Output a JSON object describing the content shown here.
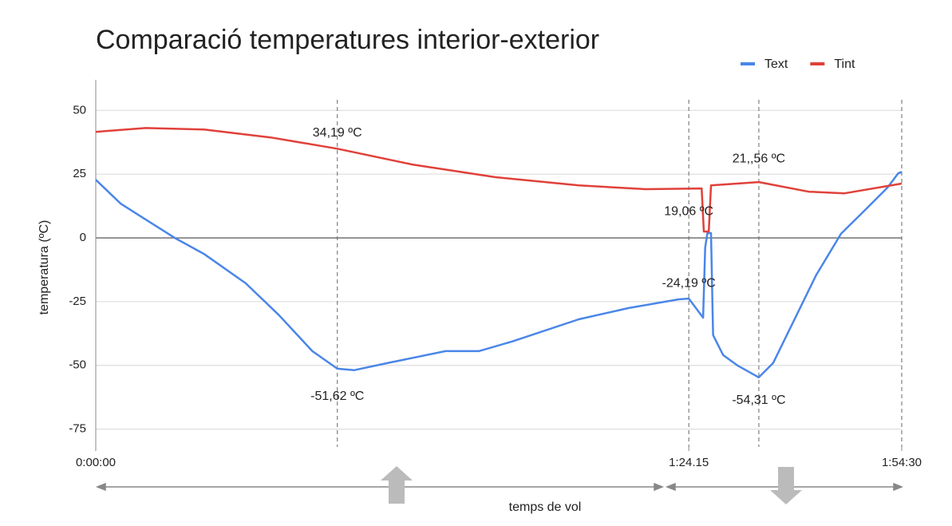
{
  "chart_data": {
    "type": "line",
    "title": "Comparació temperatures interior-exterior",
    "ylabel": "temperatura (ºC)",
    "xlabel": "temps de vol",
    "xlim": [
      0,
      114.5
    ],
    "ylim": [
      -82,
      62
    ],
    "xticks": [
      {
        "value": 0,
        "label": "0:00:00"
      },
      {
        "value": 84.25,
        "label": "1:24.15"
      },
      {
        "value": 114.5,
        "label": "1:54:30"
      }
    ],
    "yticks": [
      -75,
      -50,
      -25,
      0,
      25,
      50
    ],
    "grid": true,
    "legend": "top-right",
    "vlines": [
      34.32,
      84.25,
      94.2,
      114.5
    ],
    "series": [
      {
        "name": "Text",
        "color": "#4a86e8",
        "x": [
          0,
          3.55,
          7.1,
          11.24,
          15.38,
          21.3,
          26.03,
          30.77,
          34.32,
          36.68,
          41.42,
          49.7,
          54.43,
          59.17,
          68.63,
          75.73,
          82.83,
          84.25,
          86.28,
          86.58,
          86.89,
          87.4,
          87.7,
          89.12,
          91.15,
          94.2,
          96.23,
          99.27,
          102.32,
          105.87,
          109.42,
          112.47,
          113.99,
          114.5
        ],
        "values": [
          22.8,
          13.4,
          7.2,
          0,
          -6.3,
          -17.8,
          -30.3,
          -44.4,
          -51.3,
          -51.9,
          -49.1,
          -44.4,
          -44.4,
          -40.6,
          -31.9,
          -27.5,
          -24.1,
          -23.8,
          -31.3,
          -3.8,
          1.9,
          1.9,
          -38.1,
          -45.9,
          -50,
          -54.7,
          -49.1,
          -31.9,
          -14.7,
          1.6,
          11.3,
          19.7,
          25.3,
          25.9
        ]
      },
      {
        "name": "Tint",
        "color": "#e0413a",
        "x": [
          0,
          7.1,
          15.38,
          24.85,
          34.32,
          44.97,
          56.8,
          68.63,
          78.1,
          86.08,
          86.38,
          87.09,
          87.4,
          94.2,
          101.3,
          106.38,
          114.5
        ],
        "values": [
          41.6,
          43.1,
          42.5,
          39.4,
          35,
          28.8,
          23.8,
          20.6,
          19.1,
          19.4,
          2.5,
          2.5,
          20.6,
          21.9,
          18.1,
          17.5,
          21.3
        ]
      }
    ],
    "annotations": [
      {
        "label": "34,19 ºC",
        "x": 34.32,
        "value": 34.19
      },
      {
        "label": "-51,62 ºC",
        "x": 34.32,
        "value": -51.62
      },
      {
        "label": "19,06 ºC",
        "x": 84.25,
        "value": 19.06
      },
      {
        "label": "-24,19 ºC",
        "x": 84.25,
        "value": -24.19
      },
      {
        "label": "21,,56 ºC",
        "x": 94.2,
        "value": 21.56
      },
      {
        "label": "-54,31 ºC",
        "x": 94.2,
        "value": -54.31
      }
    ]
  }
}
